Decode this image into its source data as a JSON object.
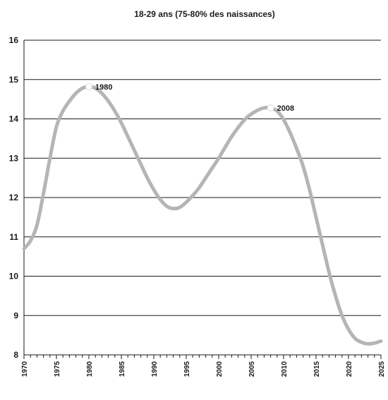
{
  "chart_data": {
    "type": "line",
    "title": "18-29 ans (75-80% des naissances)",
    "xlabel": "",
    "ylabel": "",
    "xlim": [
      1970,
      2025
    ],
    "ylim": [
      8,
      16
    ],
    "y_ticks": [
      "8",
      "9",
      "10",
      "11",
      "12",
      "13",
      "14",
      "15",
      "16"
    ],
    "x_ticks": [
      "1970",
      "1975",
      "1980",
      "1985",
      "1990",
      "1995",
      "2000",
      "2005",
      "2010",
      "2015",
      "2020",
      "2025"
    ],
    "grid": "horizontal",
    "line_color": "#b5b5b5",
    "series": [
      {
        "name": "",
        "x": [
          1970,
          1971,
          1972,
          1973,
          1974,
          1975,
          1976,
          1977,
          1978,
          1979,
          1980,
          1981,
          1982,
          1983,
          1984,
          1985,
          1986,
          1987,
          1988,
          1989,
          1990,
          1991,
          1992,
          1993,
          1994,
          1995,
          1996,
          1997,
          1998,
          1999,
          2000,
          2001,
          2002,
          2003,
          2004,
          2005,
          2006,
          2007,
          2008,
          2009,
          2010,
          2011,
          2012,
          2013,
          2014,
          2015,
          2016,
          2017,
          2018,
          2019,
          2020,
          2021,
          2022,
          2023,
          2024,
          2025
        ],
        "y": [
          10.7,
          10.9,
          11.3,
          12.1,
          13.0,
          13.8,
          14.2,
          14.45,
          14.65,
          14.78,
          14.82,
          14.78,
          14.65,
          14.45,
          14.2,
          13.9,
          13.55,
          13.2,
          12.85,
          12.5,
          12.2,
          11.95,
          11.78,
          11.72,
          11.75,
          11.88,
          12.05,
          12.25,
          12.5,
          12.75,
          13.0,
          13.28,
          13.55,
          13.78,
          13.98,
          14.12,
          14.22,
          14.28,
          14.28,
          14.2,
          13.98,
          13.65,
          13.25,
          12.8,
          12.2,
          11.5,
          10.8,
          10.1,
          9.5,
          9.0,
          8.65,
          8.42,
          8.32,
          8.28,
          8.3,
          8.35
        ]
      }
    ],
    "annotations": [
      {
        "label": "1980",
        "x": 1980,
        "y": 14.82
      },
      {
        "label": "2008",
        "x": 2008,
        "y": 14.28
      }
    ]
  }
}
